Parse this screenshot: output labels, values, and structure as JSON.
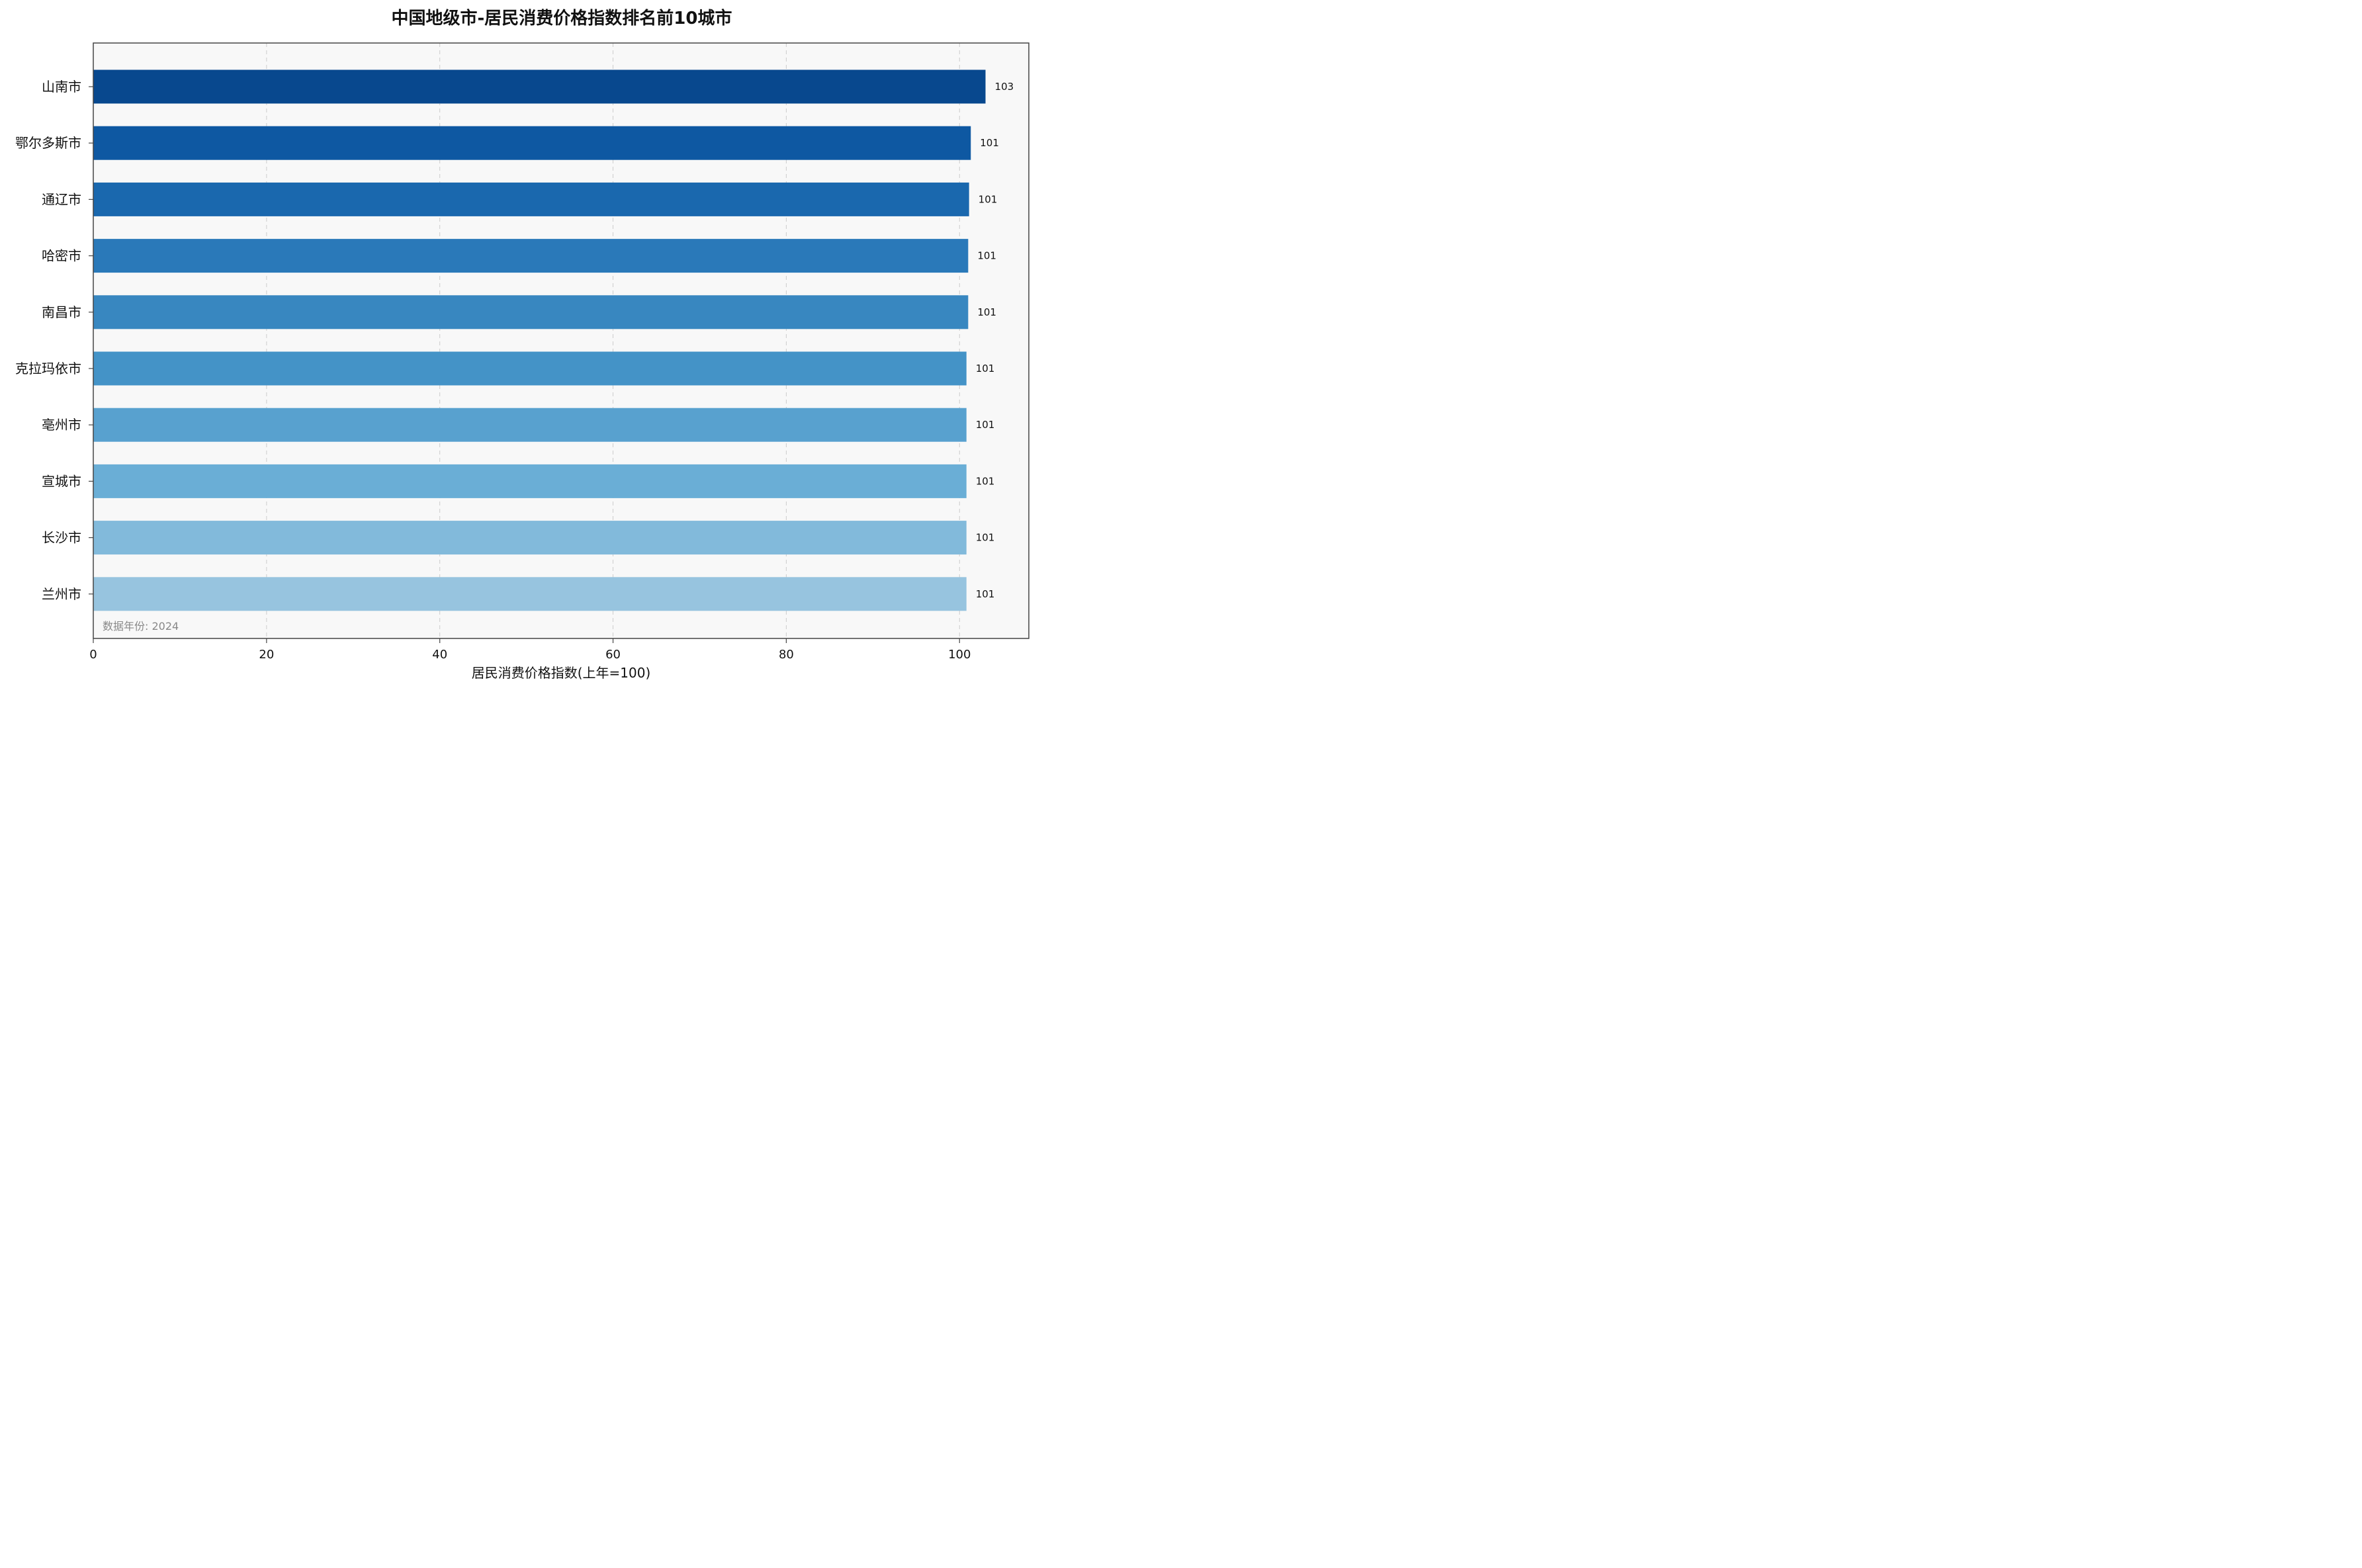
{
  "chart_data": {
    "type": "bar",
    "orientation": "horizontal",
    "title": "中国地级市-居民消费价格指数排名前10城市",
    "xlabel": "居民消费价格指数(上年=100)",
    "ylabel": "",
    "xlim": [
      0,
      108
    ],
    "x_ticks": [
      0,
      20,
      40,
      60,
      80,
      100
    ],
    "grid": "vertical dashed",
    "categories": [
      "山南市",
      "鄂尔多斯市",
      "通辽市",
      "哈密市",
      "南昌市",
      "克拉玛依市",
      "亳州市",
      "宣城市",
      "长沙市",
      "兰州市"
    ],
    "values": [
      103.0,
      101.3,
      101.1,
      101.0,
      101.0,
      100.8,
      100.8,
      100.8,
      100.8,
      100.8
    ],
    "value_labels": [
      "103",
      "101",
      "101",
      "101",
      "101",
      "101",
      "101",
      "101",
      "101",
      "101"
    ],
    "colors": [
      "#08488e",
      "#0e58a2",
      "#1a68ae",
      "#2a79b9",
      "#3887c0",
      "#4493c7",
      "#58a1cf",
      "#6aaed6",
      "#82badb",
      "#97c4df"
    ],
    "note": "数据年份: 2024"
  }
}
